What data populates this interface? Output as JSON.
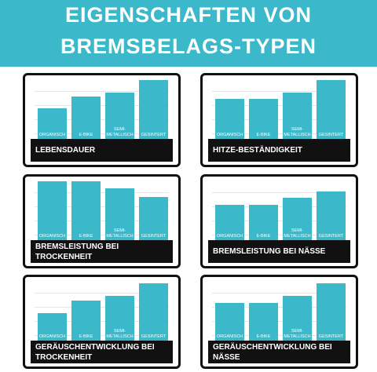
{
  "title": [
    "EIGENSCHAFTEN VON",
    "BREMSBELAGS-TYPEN"
  ],
  "chart_data": [
    {
      "type": "bar",
      "title": "LEBENSDAUER",
      "categories": [
        "ORGANISCH",
        "E-BIKE",
        "SEMI-METALLISCH",
        "GESINTERT"
      ],
      "values": [
        52,
        73,
        79,
        100
      ],
      "color": "#3bb8c9",
      "ylim": [
        0,
        100
      ]
    },
    {
      "type": "bar",
      "title": "HITZE-BESTÄNDIGKEIT",
      "categories": [
        "ORGANISCH",
        "E-BIKE",
        "SEMI-METALLISCH",
        "GESINTERT"
      ],
      "values": [
        68,
        68,
        79,
        100
      ],
      "color": "#3bb8c9",
      "ylim": [
        0,
        100
      ]
    },
    {
      "type": "bar",
      "title": "BREMSLEISTUNG BEI TROCKENHEIT",
      "categories": [
        "ORGANISCH",
        "E-BIKE",
        "SEMI-METALLISCH",
        "GESINTERT"
      ],
      "values": [
        100,
        100,
        88,
        74
      ],
      "color": "#3bb8c9",
      "ylim": [
        0,
        100
      ]
    },
    {
      "type": "bar",
      "title": "BREMSLEISTUNG BEI NÄSSE",
      "categories": [
        "ORGANISCH",
        "E-BIKE",
        "SEMI-METALLISCH",
        "GESINTERT"
      ],
      "values": [
        61,
        61,
        72,
        83
      ],
      "color": "#3bb8c9",
      "ylim": [
        0,
        100
      ]
    },
    {
      "type": "bar",
      "title": "GERÄUSCHENTWICKLUNG BEI TROCKENHEIT",
      "categories": [
        "ORGANISCH",
        "E-BIKE",
        "SEMI-METALLISCH",
        "GESINTERT"
      ],
      "values": [
        47,
        68,
        76,
        97
      ],
      "color": "#3bb8c9",
      "ylim": [
        0,
        100
      ]
    },
    {
      "type": "bar",
      "title": "GERÄUSCHENTWICKLUNG BEI NÄSSE",
      "categories": [
        "ORGANISCH",
        "E-BIKE",
        "SEMI-METALLISCH",
        "GESINTERT"
      ],
      "values": [
        65,
        64,
        76,
        97
      ],
      "color": "#3bb8c9",
      "ylim": [
        0,
        100
      ]
    }
  ]
}
